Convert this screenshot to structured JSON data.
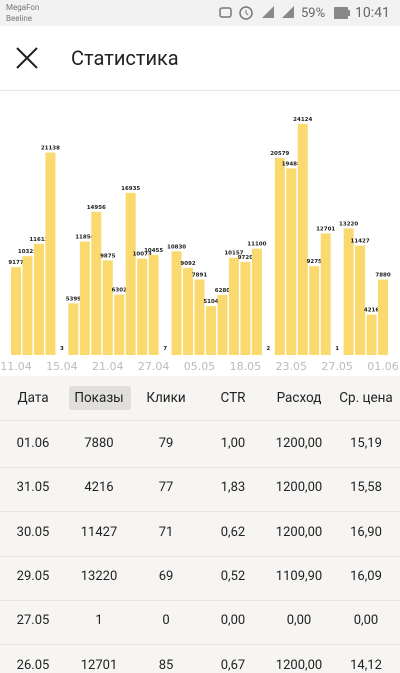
{
  "status_bar": {
    "carrier_1": "MegaFon",
    "carrier_2": "Beeline",
    "battery": "59%",
    "time": "10:41"
  },
  "header": {
    "title": "Статистика"
  },
  "chart_data": {
    "type": "bar",
    "color": "#fad96f",
    "categories": [
      "11.04",
      null,
      null,
      null,
      "15.04",
      null,
      null,
      null,
      "21.04",
      null,
      null,
      null,
      "27.04",
      null,
      null,
      null,
      "05.05",
      null,
      null,
      null,
      "18.05",
      null,
      null,
      null,
      "23.05",
      null,
      null,
      null,
      "27.05",
      null,
      null,
      null,
      "01.06"
    ],
    "values": [
      9177,
      10322,
      11612,
      21138,
      3,
      5399,
      11854,
      14956,
      9875,
      6302,
      16935,
      10073,
      10455,
      7,
      10830,
      9092,
      7891,
      5104,
      6280,
      10157,
      9720,
      11100,
      2,
      20579,
      19488,
      24124,
      9275,
      12701,
      1,
      13220,
      11427,
      4216,
      7880
    ]
  },
  "table": {
    "columns": [
      "Дата",
      "Показы",
      "Клики",
      "CTR",
      "Расход",
      "Ср. цена"
    ],
    "rows": [
      [
        "01.06",
        "7880",
        "79",
        "1,00",
        "1200,00",
        "15,19"
      ],
      [
        "31.05",
        "4216",
        "77",
        "1,83",
        "1200,00",
        "15,58"
      ],
      [
        "30.05",
        "11427",
        "71",
        "0,62",
        "1200,00",
        "16,90"
      ],
      [
        "29.05",
        "13220",
        "69",
        "0,52",
        "1109,90",
        "16,09"
      ],
      [
        "27.05",
        "1",
        "0",
        "0,00",
        "0,00",
        "0,00"
      ],
      [
        "26.05",
        "12701",
        "85",
        "0,67",
        "1200,00",
        "14,12"
      ]
    ]
  }
}
